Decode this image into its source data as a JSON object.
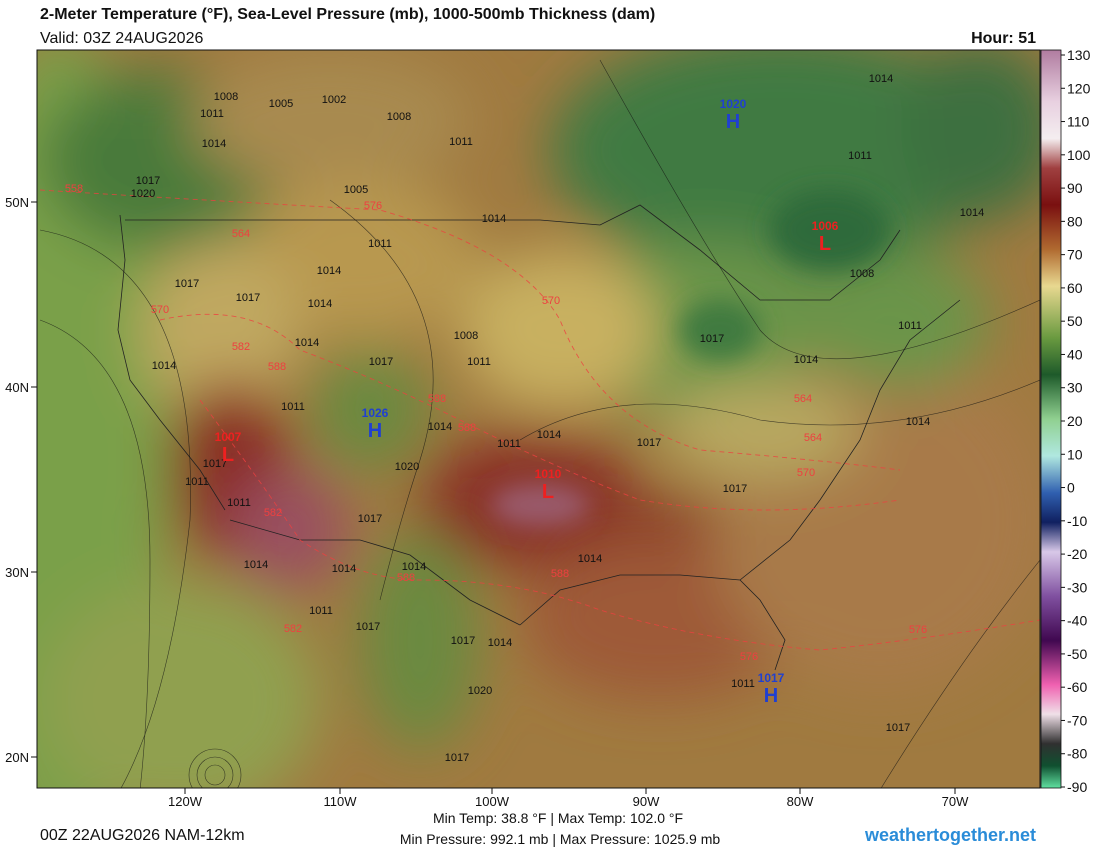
{
  "header": {
    "title": "2-Meter Temperature (°F), Sea-Level Pressure (mb), 1000-500mb Thickness (dam)",
    "valid": "Valid: 03Z 24AUG2026",
    "hour": "Hour: 51"
  },
  "colorbar": {
    "ticks": [
      130,
      120,
      110,
      100,
      90,
      80,
      70,
      60,
      50,
      40,
      30,
      20,
      10,
      0,
      -10,
      -20,
      -30,
      -40,
      -50,
      -60,
      -70,
      -80,
      -90
    ]
  },
  "latitude_labels": [
    "50N",
    "40N",
    "30N",
    "20N"
  ],
  "longitude_labels": [
    "120W",
    "110W",
    "100W",
    "90W",
    "80W",
    "70W"
  ],
  "pressure_centers": [
    {
      "letter": "H",
      "value": "1020"
    },
    {
      "letter": "L",
      "value": "1006"
    },
    {
      "letter": "H",
      "value": "1026"
    },
    {
      "letter": "L",
      "value": "1007"
    },
    {
      "letter": "L",
      "value": "1010"
    },
    {
      "letter": "H",
      "value": "1017"
    }
  ],
  "isobar_labels": [
    "1008",
    "1005",
    "1002",
    "1011",
    "1008",
    "1014",
    "1011",
    "1017",
    "1020",
    "1005",
    "1014",
    "1011",
    "1014",
    "1017",
    "1017",
    "1014",
    "1008",
    "1011",
    "1014",
    "1014",
    "1017",
    "1011",
    "1014",
    "1011",
    "1014",
    "1017",
    "1020",
    "1017",
    "1011",
    "1011",
    "1017",
    "1014",
    "1014",
    "1014",
    "1014",
    "1011",
    "1017",
    "1017",
    "1014",
    "1020",
    "1017",
    "1017",
    "1017",
    "1014",
    "1011",
    "1014",
    "1008",
    "1011",
    "1014",
    "1014",
    "1017",
    "1011"
  ],
  "thickness_labels": [
    "558",
    "576",
    "564",
    "570",
    "582",
    "588",
    "588",
    "588",
    "570",
    "564",
    "570",
    "564",
    "588",
    "588",
    "582",
    "576",
    "576",
    "582"
  ],
  "footer": {
    "run": "00Z 22AUG2026 NAM-12km",
    "temperature_range": "Min Temp:  38.8 °F | Max Temp: 102.0 °F",
    "pressure_range": "Min Pressure: 992.1 mb | Max Pressure: 1025.9 mb",
    "site": "weathertogether.net"
  }
}
